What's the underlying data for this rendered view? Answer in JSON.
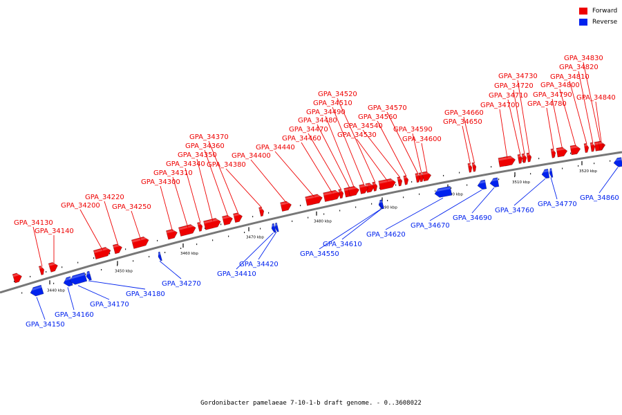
{
  "legend": {
    "forward": {
      "label": "Forward",
      "color": "#ee0000"
    },
    "reverse": {
      "label": "Reverse",
      "color": "#0022ee"
    }
  },
  "caption": "Gordonibacter pamelaeae 7-10-1-b draft genome. - 0..3608022",
  "ticks": [
    "3440 kbp",
    "3450 kbp",
    "3460 kbp",
    "3470 kbp",
    "3480 kbp",
    "3490 kbp",
    "3500 kbp",
    "3510 kbp",
    "3520 kbp"
  ],
  "forward_genes": [
    "GPA_34130",
    "GPA_34140",
    "GPA_34200",
    "GPA_34220",
    "GPA_34250",
    "GPA_34300",
    "GPA_34310",
    "GPA_34340",
    "GPA_34350",
    "GPA_34360",
    "GPA_34370",
    "GPA_34380",
    "GPA_34400",
    "GPA_34440",
    "GPA_34460",
    "GPA_34470",
    "GPA_34480",
    "GPA_34490",
    "GPA_34510",
    "GPA_34520",
    "GPA_34530",
    "GPA_34540",
    "GPA_34560",
    "GPA_34570",
    "GPA_34590",
    "GPA_34600",
    "GPA_34650",
    "GPA_34660",
    "GPA_34700",
    "GPA_34710",
    "GPA_34720",
    "GPA_34730",
    "GPA_34780",
    "GPA_34790",
    "GPA_34800",
    "GPA_34810",
    "GPA_34820",
    "GPA_34830",
    "GPA_34840"
  ],
  "reverse_genes": [
    "GPA_34150",
    "GPA_34160",
    "GPA_34170",
    "GPA_34180",
    "GPA_34270",
    "GPA_34410",
    "GPA_34420",
    "GPA_34550",
    "GPA_34610",
    "GPA_34620",
    "GPA_34670",
    "GPA_34690",
    "GPA_34760",
    "GPA_34770",
    "GPA_34860"
  ]
}
